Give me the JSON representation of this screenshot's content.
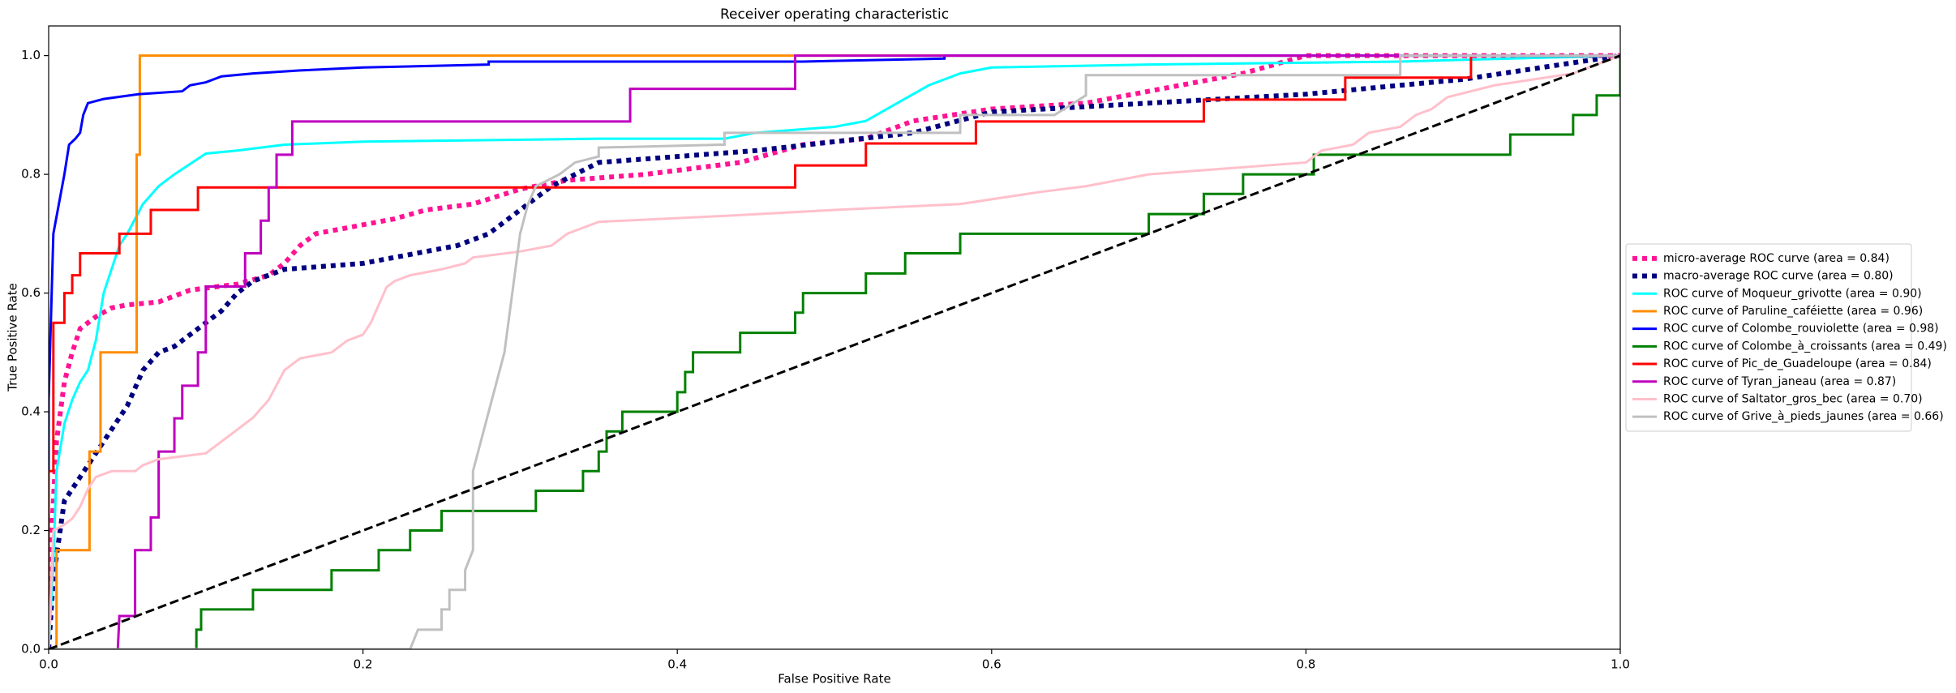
{
  "chart_data": {
    "type": "line",
    "title": "Receiver operating characteristic",
    "x_label": "False Positive Rate",
    "y_label": "True Positive Rate",
    "xlim": [
      0,
      1
    ],
    "ylim": [
      0,
      1.05
    ],
    "xticks": [
      {
        "value": 0,
        "label": "0.0"
      },
      0.2,
      0.4,
      0.6,
      0.8,
      {
        "value": 1,
        "label": "1.0"
      }
    ],
    "yticks": [
      {
        "value": 0,
        "label": "0.0"
      },
      0.2,
      0.4,
      0.6,
      0.8,
      {
        "value": 1,
        "label": "1.0"
      }
    ],
    "legend": "right",
    "series": [
      {
        "name": "micro-average ROC curve (area = 0.84)",
        "color": "deeppink",
        "linestyle": "dotted",
        "linewidth": 4,
        "x": [
          0,
          0.002,
          0.005,
          0.01,
          0.015,
          0.02,
          0.03,
          0.04,
          0.05,
          0.07,
          0.08,
          0.09,
          0.12,
          0.14,
          0.15,
          0.16,
          0.17,
          0.2,
          0.22,
          0.24,
          0.27,
          0.3,
          0.33,
          0.38,
          0.44,
          0.48,
          0.52,
          0.55,
          0.6,
          0.66,
          0.72,
          0.76,
          0.8,
          1
        ],
        "values": [
          0,
          0.2,
          0.35,
          0.45,
          0.5,
          0.54,
          0.56,
          0.575,
          0.58,
          0.585,
          0.595,
          0.605,
          0.615,
          0.63,
          0.65,
          0.68,
          0.7,
          0.715,
          0.725,
          0.74,
          0.75,
          0.775,
          0.79,
          0.8,
          0.82,
          0.85,
          0.86,
          0.89,
          0.91,
          0.92,
          0.95,
          0.97,
          1,
          1
        ]
      },
      {
        "name": "macro-average ROC curve (area = 0.80)",
        "color": "navy",
        "linestyle": "dotted",
        "linewidth": 4,
        "x": [
          0,
          0.003,
          0.01,
          0.02,
          0.03,
          0.04,
          0.05,
          0.06,
          0.07,
          0.08,
          0.09,
          0.1,
          0.11,
          0.12,
          0.13,
          0.15,
          0.2,
          0.22,
          0.24,
          0.26,
          0.28,
          0.3,
          0.31,
          0.32,
          0.35,
          0.4,
          0.45,
          0.5,
          0.55,
          0.6,
          0.7,
          0.8,
          0.9,
          0.95,
          1
        ],
        "values": [
          0,
          0.12,
          0.25,
          0.29,
          0.33,
          0.37,
          0.41,
          0.47,
          0.5,
          0.51,
          0.53,
          0.55,
          0.57,
          0.6,
          0.62,
          0.64,
          0.65,
          0.66,
          0.67,
          0.68,
          0.7,
          0.74,
          0.76,
          0.78,
          0.82,
          0.83,
          0.84,
          0.855,
          0.87,
          0.905,
          0.92,
          0.935,
          0.96,
          0.98,
          1
        ]
      },
      {
        "name": "ROC curve of Moqueur_grivotte (area = 0.90)",
        "color": "aqua",
        "linestyle": "solid",
        "linewidth": 2,
        "x": [
          0,
          0.003,
          0.005,
          0.01,
          0.015,
          0.02,
          0.025,
          0.03,
          0.035,
          0.045,
          0.05,
          0.06,
          0.07,
          0.08,
          0.1,
          0.12,
          0.15,
          0.2,
          0.35,
          0.43,
          0.45,
          0.5,
          0.52,
          0.54,
          0.56,
          0.58,
          0.6,
          0.7,
          0.86,
          1
        ],
        "values": [
          0,
          0.15,
          0.3,
          0.38,
          0.42,
          0.45,
          0.47,
          0.52,
          0.6,
          0.68,
          0.7,
          0.75,
          0.78,
          0.8,
          0.835,
          0.84,
          0.85,
          0.855,
          0.86,
          0.86,
          0.87,
          0.88,
          0.89,
          0.92,
          0.95,
          0.97,
          0.98,
          0.985,
          0.99,
          1
        ]
      },
      {
        "name": "ROC curve of Paruline_caféiette (area = 0.96)",
        "color": "darkorange",
        "linestyle": "solid",
        "linewidth": 2,
        "x": [
          0,
          0.005,
          0.005,
          0.026,
          0.026,
          0.033,
          0.033,
          0.056,
          0.056,
          0.058,
          0.058,
          1
        ],
        "values": [
          0,
          0,
          0.167,
          0.167,
          0.333,
          0.333,
          0.5,
          0.5,
          0.833,
          0.833,
          1,
          1
        ]
      },
      {
        "name": "ROC curve of Colombe_rouviolette (area = 0.98)",
        "color": "blue",
        "linestyle": "solid",
        "linewidth": 2,
        "x": [
          0,
          0,
          0.003,
          0.01,
          0.013,
          0.017,
          0.02,
          0.022,
          0.025,
          0.035,
          0.057,
          0.085,
          0.09,
          0.1,
          0.11,
          0.13,
          0.16,
          0.2,
          0.28,
          0.28,
          0.48,
          0.57,
          0.57,
          1
        ],
        "values": [
          0,
          0.42,
          0.7,
          0.8,
          0.85,
          0.86,
          0.87,
          0.9,
          0.92,
          0.927,
          0.935,
          0.94,
          0.95,
          0.955,
          0.965,
          0.97,
          0.975,
          0.98,
          0.985,
          0.99,
          0.99,
          0.995,
          1,
          1
        ]
      },
      {
        "name": "ROC curve of Colombe_à_croissants (area = 0.49)",
        "color": "green",
        "linestyle": "solid",
        "linewidth": 2,
        "x": [
          0.094,
          0.094,
          0.097,
          0.097,
          0.13,
          0.13,
          0.18,
          0.18,
          0.21,
          0.21,
          0.23,
          0.23,
          0.25,
          0.25,
          0.31,
          0.31,
          0.34,
          0.34,
          0.35,
          0.35,
          0.355,
          0.355,
          0.365,
          0.365,
          0.4,
          0.4,
          0.405,
          0.405,
          0.41,
          0.41,
          0.44,
          0.44,
          0.475,
          0.475,
          0.48,
          0.48,
          0.52,
          0.52,
          0.545,
          0.545,
          0.58,
          0.58,
          0.7,
          0.7,
          0.735,
          0.735,
          0.76,
          0.76,
          0.805,
          0.805,
          0.93,
          0.93,
          0.97,
          0.97,
          0.985,
          0.985,
          1,
          1
        ],
        "values": [
          0,
          0.033,
          0.033,
          0.067,
          0.067,
          0.1,
          0.1,
          0.133,
          0.133,
          0.167,
          0.167,
          0.2,
          0.2,
          0.233,
          0.233,
          0.267,
          0.267,
          0.3,
          0.3,
          0.333,
          0.333,
          0.367,
          0.367,
          0.4,
          0.4,
          0.433,
          0.433,
          0.467,
          0.467,
          0.5,
          0.5,
          0.533,
          0.533,
          0.567,
          0.567,
          0.6,
          0.6,
          0.633,
          0.633,
          0.667,
          0.667,
          0.7,
          0.7,
          0.733,
          0.733,
          0.767,
          0.767,
          0.8,
          0.8,
          0.833,
          0.833,
          0.867,
          0.867,
          0.9,
          0.9,
          0.933,
          0.933,
          1
        ]
      },
      {
        "name": "ROC curve of Pic_de_Guadeloupe (area = 0.84)",
        "color": "red",
        "linestyle": "solid",
        "linewidth": 2,
        "x": [
          0,
          0,
          0.003,
          0.003,
          0.01,
          0.01,
          0.015,
          0.015,
          0.02,
          0.02,
          0.045,
          0.045,
          0.065,
          0.065,
          0.095,
          0.095,
          0.475,
          0.475,
          0.52,
          0.52,
          0.59,
          0.59,
          0.735,
          0.735,
          0.825,
          0.825,
          0.905,
          0.905,
          1
        ],
        "values": [
          0,
          0.3,
          0.3,
          0.55,
          0.55,
          0.6,
          0.6,
          0.63,
          0.63,
          0.667,
          0.667,
          0.7,
          0.7,
          0.74,
          0.74,
          0.778,
          0.778,
          0.815,
          0.815,
          0.852,
          0.852,
          0.889,
          0.889,
          0.926,
          0.926,
          0.963,
          0.963,
          1,
          1
        ]
      },
      {
        "name": "ROC curve of Tyran_janeau (area = 0.87)",
        "color": "m",
        "linestyle": "solid",
        "linewidth": 2,
        "x": [
          0.044,
          0.045,
          0.055,
          0.055,
          0.065,
          0.065,
          0.07,
          0.07,
          0.08,
          0.08,
          0.085,
          0.085,
          0.095,
          0.095,
          0.1,
          0.1,
          0.125,
          0.125,
          0.135,
          0.135,
          0.14,
          0.14,
          0.145,
          0.145,
          0.155,
          0.155,
          0.37,
          0.37,
          0.475,
          0.475,
          1
        ],
        "values": [
          0,
          0.056,
          0.056,
          0.167,
          0.167,
          0.222,
          0.222,
          0.333,
          0.333,
          0.389,
          0.389,
          0.444,
          0.444,
          0.5,
          0.5,
          0.611,
          0.611,
          0.667,
          0.667,
          0.722,
          0.722,
          0.778,
          0.778,
          0.833,
          0.833,
          0.889,
          0.889,
          0.944,
          0.944,
          1,
          1
        ]
      },
      {
        "name": "ROC curve of Saltator_gros_bec (area = 0.70)",
        "color": "pink",
        "linestyle": "solid",
        "linewidth": 2,
        "x": [
          0,
          0.003,
          0.01,
          0.015,
          0.02,
          0.025,
          0.03,
          0.04,
          0.055,
          0.06,
          0.07,
          0.1,
          0.11,
          0.12,
          0.13,
          0.14,
          0.15,
          0.16,
          0.18,
          0.19,
          0.2,
          0.205,
          0.21,
          0.215,
          0.22,
          0.23,
          0.25,
          0.265,
          0.27,
          0.3,
          0.32,
          0.33,
          0.35,
          0.43,
          0.5,
          0.58,
          0.63,
          0.66,
          0.7,
          0.75,
          0.8,
          0.81,
          0.83,
          0.84,
          0.86,
          0.87,
          0.88,
          0.89,
          0.92,
          0.97,
          0.99,
          1
        ],
        "values": [
          0,
          0.2,
          0.21,
          0.22,
          0.24,
          0.27,
          0.29,
          0.3,
          0.3,
          0.31,
          0.32,
          0.33,
          0.35,
          0.37,
          0.39,
          0.42,
          0.47,
          0.49,
          0.5,
          0.52,
          0.53,
          0.55,
          0.58,
          0.61,
          0.62,
          0.63,
          0.64,
          0.65,
          0.66,
          0.67,
          0.68,
          0.7,
          0.72,
          0.73,
          0.74,
          0.75,
          0.77,
          0.78,
          0.8,
          0.81,
          0.82,
          0.84,
          0.85,
          0.87,
          0.88,
          0.9,
          0.91,
          0.93,
          0.95,
          0.97,
          0.99,
          1
        ]
      },
      {
        "name": "ROC curve of Grive_à_pieds_jaunes (area = 0.66)",
        "color": "silver",
        "linestyle": "solid",
        "linewidth": 2,
        "x": [
          0,
          0.23,
          0.235,
          0.25,
          0.25,
          0.255,
          0.255,
          0.265,
          0.265,
          0.27,
          0.27,
          0.28,
          0.285,
          0.29,
          0.295,
          0.3,
          0.305,
          0.31,
          0.325,
          0.335,
          0.35,
          0.35,
          0.43,
          0.43,
          0.58,
          0.58,
          0.64,
          0.66,
          0.66,
          0.86,
          0.86,
          1
        ],
        "values": [
          0,
          0,
          0.033,
          0.033,
          0.067,
          0.067,
          0.1,
          0.1,
          0.133,
          0.167,
          0.3,
          0.4,
          0.45,
          0.5,
          0.6,
          0.7,
          0.75,
          0.78,
          0.8,
          0.82,
          0.83,
          0.845,
          0.85,
          0.87,
          0.87,
          0.9,
          0.9,
          0.933,
          0.967,
          0.967,
          1,
          1
        ]
      },
      {
        "color": "black",
        "linestyle": "dashed",
        "linewidth": 2,
        "x": [
          0,
          1
        ],
        "values": [
          0,
          1
        ]
      }
    ]
  }
}
